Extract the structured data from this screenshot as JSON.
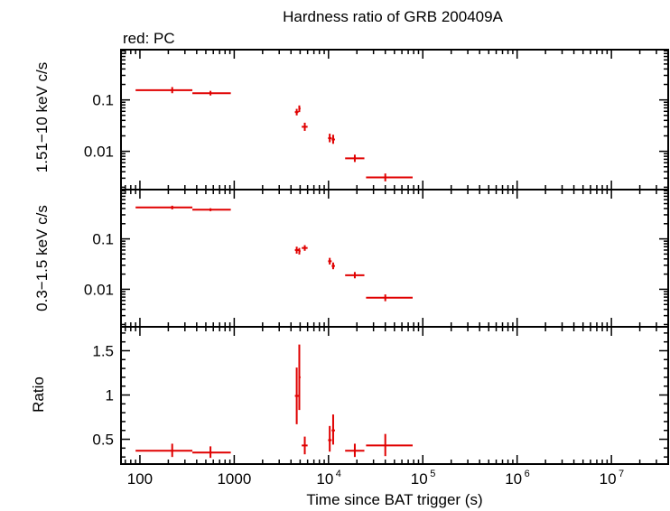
{
  "title": "Hardness ratio of GRB 200409A",
  "subtitle": "red: PC",
  "xlabel": "Time since BAT trigger (s)",
  "colors": {
    "series": "#e00000",
    "axis": "#000000"
  },
  "chart_data": [
    {
      "type": "scatter",
      "panel": "top",
      "ylabel": "1.51−10 keV c/s",
      "xscale": "log",
      "yscale": "log",
      "xlim": [
        63,
        40000000
      ],
      "ylim": [
        0.0018,
        0.95
      ],
      "y_ticks": [
        {
          "v": 0.1,
          "label": "0.1"
        },
        {
          "v": 0.01,
          "label": "0.01"
        }
      ],
      "points": [
        {
          "x": 220,
          "xlo": 90,
          "xhi": 360,
          "y": 0.155,
          "ylo": 0.135,
          "yhi": 0.178
        },
        {
          "x": 560,
          "xlo": 360,
          "xhi": 920,
          "y": 0.135,
          "ylo": 0.122,
          "yhi": 0.15
        },
        {
          "x": 4600,
          "xlo": 4400,
          "xhi": 4800,
          "y": 0.058,
          "ylo": 0.05,
          "yhi": 0.067
        },
        {
          "x": 4900,
          "xlo": 4800,
          "xhi": 5050,
          "y": 0.068,
          "ylo": 0.058,
          "yhi": 0.078
        },
        {
          "x": 5600,
          "xlo": 5200,
          "xhi": 6000,
          "y": 0.03,
          "ylo": 0.025,
          "yhi": 0.036
        },
        {
          "x": 10300,
          "xlo": 9900,
          "xhi": 10800,
          "y": 0.018,
          "ylo": 0.015,
          "yhi": 0.022
        },
        {
          "x": 11200,
          "xlo": 10800,
          "xhi": 11700,
          "y": 0.017,
          "ylo": 0.014,
          "yhi": 0.021
        },
        {
          "x": 19000,
          "xlo": 15000,
          "xhi": 24000,
          "y": 0.0073,
          "ylo": 0.0062,
          "yhi": 0.0086
        },
        {
          "x": 40000,
          "xlo": 25000,
          "xhi": 78000,
          "y": 0.0031,
          "ylo": 0.0026,
          "yhi": 0.0037
        }
      ]
    },
    {
      "type": "scatter",
      "panel": "middle",
      "ylabel": "0.3−1.5 keV c/s",
      "xscale": "log",
      "yscale": "log",
      "xlim": [
        63,
        40000000
      ],
      "ylim": [
        0.0018,
        0.95
      ],
      "y_ticks": [
        {
          "v": 0.1,
          "label": "0.1"
        },
        {
          "v": 0.01,
          "label": "0.01"
        }
      ],
      "points": [
        {
          "x": 220,
          "xlo": 90,
          "xhi": 360,
          "y": 0.42,
          "ylo": 0.385,
          "yhi": 0.455
        },
        {
          "x": 560,
          "xlo": 360,
          "xhi": 920,
          "y": 0.38,
          "ylo": 0.355,
          "yhi": 0.405
        },
        {
          "x": 4600,
          "xlo": 4400,
          "xhi": 4800,
          "y": 0.06,
          "ylo": 0.051,
          "yhi": 0.07
        },
        {
          "x": 4900,
          "xlo": 4800,
          "xhi": 5050,
          "y": 0.057,
          "ylo": 0.049,
          "yhi": 0.066
        },
        {
          "x": 5600,
          "xlo": 5200,
          "xhi": 6000,
          "y": 0.066,
          "ylo": 0.058,
          "yhi": 0.075
        },
        {
          "x": 10300,
          "xlo": 9900,
          "xhi": 10800,
          "y": 0.036,
          "ylo": 0.031,
          "yhi": 0.042
        },
        {
          "x": 11200,
          "xlo": 10800,
          "xhi": 11700,
          "y": 0.029,
          "ylo": 0.025,
          "yhi": 0.034
        },
        {
          "x": 19000,
          "xlo": 15000,
          "xhi": 24000,
          "y": 0.019,
          "ylo": 0.0165,
          "yhi": 0.022
        },
        {
          "x": 40000,
          "xlo": 25000,
          "xhi": 78000,
          "y": 0.0068,
          "ylo": 0.0058,
          "yhi": 0.0079
        }
      ]
    },
    {
      "type": "scatter",
      "panel": "bottom",
      "ylabel": "Ratio",
      "xscale": "log",
      "yscale": "linear",
      "xlim": [
        63,
        40000000
      ],
      "ylim": [
        0.22,
        1.77
      ],
      "y_ticks": [
        {
          "v": 1.5,
          "label": "1.5"
        },
        {
          "v": 1,
          "label": "1"
        },
        {
          "v": 0.5,
          "label": "0.5"
        }
      ],
      "points": [
        {
          "x": 220,
          "xlo": 90,
          "xhi": 360,
          "y": 0.37,
          "ylo": 0.3,
          "yhi": 0.45
        },
        {
          "x": 560,
          "xlo": 360,
          "xhi": 920,
          "y": 0.35,
          "ylo": 0.29,
          "yhi": 0.42
        },
        {
          "x": 4600,
          "xlo": 4400,
          "xhi": 4800,
          "y": 0.99,
          "ylo": 0.67,
          "yhi": 1.31
        },
        {
          "x": 4900,
          "xlo": 4800,
          "xhi": 5050,
          "y": 1.2,
          "ylo": 0.83,
          "yhi": 1.57
        },
        {
          "x": 5600,
          "xlo": 5200,
          "xhi": 6000,
          "y": 0.43,
          "ylo": 0.33,
          "yhi": 0.53
        },
        {
          "x": 10300,
          "xlo": 9900,
          "xhi": 10800,
          "y": 0.49,
          "ylo": 0.36,
          "yhi": 0.65
        },
        {
          "x": 11200,
          "xlo": 10800,
          "xhi": 11700,
          "y": 0.6,
          "ylo": 0.44,
          "yhi": 0.78
        },
        {
          "x": 19000,
          "xlo": 15000,
          "xhi": 24000,
          "y": 0.37,
          "ylo": 0.3,
          "yhi": 0.45
        },
        {
          "x": 40000,
          "xlo": 25000,
          "xhi": 78000,
          "y": 0.43,
          "ylo": 0.31,
          "yhi": 0.56
        }
      ]
    }
  ],
  "x_ticks": [
    {
      "v": 100,
      "label": "100"
    },
    {
      "v": 1000,
      "label": "1000"
    },
    {
      "v": 10000,
      "base": "10",
      "exp": "4"
    },
    {
      "v": 100000,
      "base": "10",
      "exp": "5"
    },
    {
      "v": 1000000,
      "base": "10",
      "exp": "6"
    },
    {
      "v": 10000000,
      "base": "10",
      "exp": "7"
    }
  ],
  "panel_label_line1": "0.3−1.5 keV c/s  1.51−10 keV c/s"
}
